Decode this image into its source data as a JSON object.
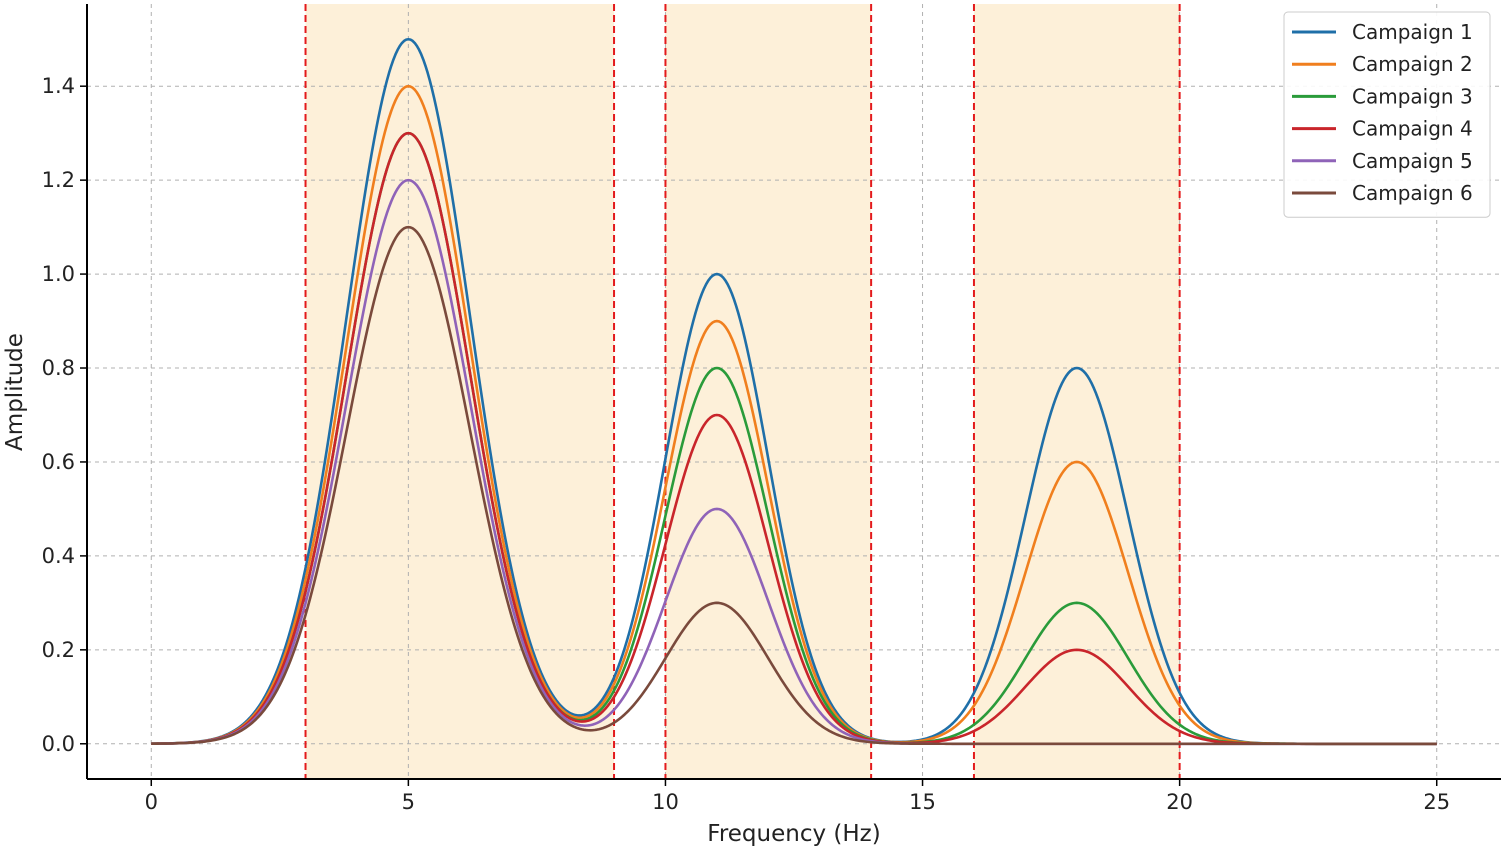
{
  "chart_data": {
    "type": "line",
    "title": "",
    "xlabel": "Frequency (Hz)",
    "ylabel": "Amplitude",
    "xlim": [
      -1.25,
      26.25
    ],
    "ylim": [
      -0.075,
      1.575
    ],
    "xticks": [
      0,
      5,
      10,
      15,
      20,
      25
    ],
    "xtick_labels": [
      "0",
      "5",
      "10",
      "15",
      "20",
      "25"
    ],
    "yticks": [
      0.0,
      0.2,
      0.4,
      0.6,
      0.8,
      1.0,
      1.2,
      1.4
    ],
    "ytick_labels": [
      "0.0",
      "0.2",
      "0.4",
      "0.6",
      "0.8",
      "1.0",
      "1.2",
      "1.4"
    ],
    "grid": true,
    "legend_position": "top-right",
    "x_range": [
      0,
      25
    ],
    "peaks": [
      {
        "center": 5,
        "width": 1.2
      },
      {
        "center": 11,
        "width": 1.0
      },
      {
        "center": 18,
        "width": 1.0
      }
    ],
    "bands": [
      {
        "start": 3,
        "end": 9
      },
      {
        "start": 10,
        "end": 14
      },
      {
        "start": 16,
        "end": 20
      }
    ],
    "band_fill_color": "#fdf0d9",
    "band_edge_color": "#e31a1c",
    "series": [
      {
        "name": "Campaign 1",
        "color": "#1f6fa8",
        "peak_amplitudes": [
          1.5,
          1.0,
          0.8
        ]
      },
      {
        "name": "Campaign 2",
        "color": "#f07f1e",
        "peak_amplitudes": [
          1.4,
          0.9,
          0.6
        ]
      },
      {
        "name": "Campaign 3",
        "color": "#2a9b3a",
        "peak_amplitudes": [
          1.3,
          0.8,
          0.3
        ]
      },
      {
        "name": "Campaign 4",
        "color": "#c9252b",
        "peak_amplitudes": [
          1.3,
          0.7,
          0.2
        ]
      },
      {
        "name": "Campaign 5",
        "color": "#8f63b8",
        "peak_amplitudes": [
          1.2,
          0.5,
          0.0
        ]
      },
      {
        "name": "Campaign 6",
        "color": "#7a4a3c",
        "peak_amplitudes": [
          1.1,
          0.3,
          0.0
        ]
      }
    ]
  }
}
